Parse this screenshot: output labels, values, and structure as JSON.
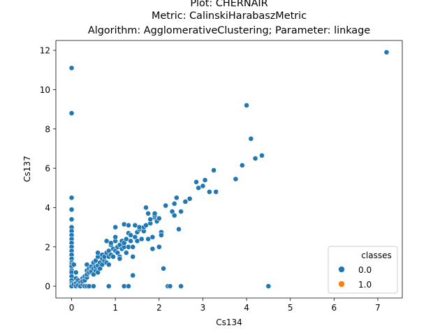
{
  "chart_data": {
    "type": "scatter",
    "title_lines": [
      "Plot: CHERNAIR",
      "Metric: CalinskiHarabaszMetric",
      "Algorithm: AgglomerativeClustering; Parameter: linkage"
    ],
    "xlabel": "Cs134",
    "ylabel": "Cs137",
    "xlim": [
      -0.36,
      7.56
    ],
    "ylim": [
      -0.6,
      12.5
    ],
    "xticks": [
      0,
      1,
      2,
      3,
      4,
      5,
      6,
      7
    ],
    "yticks": [
      0,
      2,
      4,
      6,
      8,
      10,
      12
    ],
    "grid": false,
    "legend": {
      "title": "classes",
      "placement": "lower-right",
      "entries": [
        {
          "label": "0.0",
          "color": "#1f77b4"
        },
        {
          "label": "1.0",
          "color": "#ff7f0e"
        }
      ]
    },
    "series": [
      {
        "class": "0.0",
        "color": "#1f77b4",
        "points": [
          [
            0,
            11.1
          ],
          [
            0,
            8.8
          ],
          [
            0,
            4.5
          ],
          [
            0,
            3.9
          ],
          [
            0,
            3.4
          ],
          [
            0,
            3.0
          ],
          [
            0,
            2.8
          ],
          [
            0,
            2.6
          ],
          [
            0,
            2.4
          ],
          [
            0,
            2.2
          ],
          [
            0,
            2.0
          ],
          [
            0,
            1.8
          ],
          [
            0,
            1.6
          ],
          [
            0,
            1.4
          ],
          [
            0,
            1.2
          ],
          [
            0,
            1.1
          ],
          [
            0,
            1.0
          ],
          [
            0,
            0.8
          ],
          [
            0,
            0.7
          ],
          [
            0,
            0.5
          ],
          [
            0,
            0.3
          ],
          [
            0,
            0.15
          ],
          [
            0,
            0.05
          ],
          [
            0,
            0.0
          ],
          [
            0.05,
            1.1
          ],
          [
            0.05,
            0.1
          ],
          [
            0.1,
            0.7
          ],
          [
            0.1,
            0.4
          ],
          [
            0.1,
            0.15
          ],
          [
            0.1,
            0.0
          ],
          [
            0.15,
            0.3
          ],
          [
            0.15,
            0.05
          ],
          [
            0.2,
            0.2
          ],
          [
            0.2,
            0.0
          ],
          [
            0.25,
            0.1
          ],
          [
            0.25,
            0.4
          ],
          [
            0.25,
            0.25
          ],
          [
            0.3,
            0.3
          ],
          [
            0.3,
            0.0
          ],
          [
            0.3,
            0.5
          ],
          [
            0.35,
            0.45
          ],
          [
            0.35,
            0.8
          ],
          [
            0.35,
            1.1
          ],
          [
            0.35,
            0.6
          ],
          [
            0.35,
            0.0
          ],
          [
            0.4,
            0.7
          ],
          [
            0.4,
            0.9
          ],
          [
            0.4,
            0.0
          ],
          [
            0.45,
            0.85
          ],
          [
            0.45,
            1.0
          ],
          [
            0.45,
            0.75
          ],
          [
            0.5,
            1.2
          ],
          [
            0.5,
            0.9
          ],
          [
            0.5,
            0.6
          ],
          [
            0.5,
            0.0
          ],
          [
            0.55,
            1.3
          ],
          [
            0.55,
            0.8
          ],
          [
            0.55,
            1.0
          ],
          [
            0.6,
            1.05
          ],
          [
            0.6,
            0.7
          ],
          [
            0.6,
            1.5
          ],
          [
            0.6,
            1.7
          ],
          [
            0.65,
            1.2
          ],
          [
            0.65,
            0.9
          ],
          [
            0.7,
            1.4
          ],
          [
            0.7,
            1.1
          ],
          [
            0.7,
            1.6
          ],
          [
            0.75,
            1.3
          ],
          [
            0.75,
            1.5
          ],
          [
            0.8,
            2.3
          ],
          [
            0.8,
            1.7
          ],
          [
            0.8,
            1.2
          ],
          [
            0.85,
            1.5
          ],
          [
            0.85,
            1.1
          ],
          [
            0.85,
            0.0
          ],
          [
            0.85,
            1.8
          ],
          [
            0.9,
            2.1
          ],
          [
            0.9,
            1.6
          ],
          [
            0.9,
            2.2
          ],
          [
            0.95,
            1.9
          ],
          [
            0.95,
            1.5
          ],
          [
            1.0,
            1.8
          ],
          [
            1.0,
            2.3
          ],
          [
            1.0,
            2.5
          ],
          [
            1.0,
            3.0
          ],
          [
            1.05,
            1.7
          ],
          [
            1.05,
            2.0
          ],
          [
            1.1,
            1.5
          ],
          [
            1.1,
            2.1
          ],
          [
            1.1,
            1.4
          ],
          [
            1.15,
            2.3
          ],
          [
            1.15,
            1.9
          ],
          [
            1.2,
            3.15
          ],
          [
            1.2,
            2.0
          ],
          [
            1.2,
            2.2
          ],
          [
            1.2,
            0.0
          ],
          [
            1.25,
            2.4
          ],
          [
            1.25,
            1.7
          ],
          [
            1.3,
            2.0
          ],
          [
            1.3,
            2.7
          ],
          [
            1.3,
            3.1
          ],
          [
            1.3,
            0.0
          ],
          [
            1.35,
            2.3
          ],
          [
            1.35,
            2.6
          ],
          [
            1.4,
            2.0
          ],
          [
            1.4,
            0.55
          ],
          [
            1.4,
            1.5
          ],
          [
            1.45,
            2.5
          ],
          [
            1.45,
            3.1
          ],
          [
            1.5,
            2.75
          ],
          [
            1.5,
            2.3
          ],
          [
            1.55,
            2.9
          ],
          [
            1.55,
            3.0
          ],
          [
            1.6,
            2.4
          ],
          [
            1.65,
            2.8
          ],
          [
            1.65,
            3.0
          ],
          [
            1.7,
            3.1
          ],
          [
            1.7,
            4.0
          ],
          [
            1.75,
            2.4
          ],
          [
            1.75,
            3.7
          ],
          [
            1.8,
            3.2
          ],
          [
            1.8,
            3.4
          ],
          [
            1.85,
            1.9
          ],
          [
            1.85,
            2.5
          ],
          [
            1.9,
            3.5
          ],
          [
            1.9,
            3.6
          ],
          [
            1.9,
            3.7
          ],
          [
            1.95,
            3.3
          ],
          [
            2.0,
            2.0
          ],
          [
            2.0,
            3.45
          ],
          [
            2.05,
            2.75
          ],
          [
            2.05,
            2.6
          ],
          [
            2.1,
            0.9
          ],
          [
            2.15,
            4.1
          ],
          [
            2.2,
            0.0
          ],
          [
            2.25,
            0.0
          ],
          [
            2.3,
            3.8
          ],
          [
            2.35,
            4.2
          ],
          [
            2.35,
            3.6
          ],
          [
            2.4,
            4.5
          ],
          [
            2.45,
            2.9
          ],
          [
            2.5,
            3.8
          ],
          [
            2.5,
            0.0
          ],
          [
            2.6,
            4.3
          ],
          [
            2.7,
            4.45
          ],
          [
            2.85,
            5.3
          ],
          [
            2.9,
            5.0
          ],
          [
            3.0,
            5.1
          ],
          [
            3.05,
            5.4
          ],
          [
            3.15,
            4.8
          ],
          [
            3.25,
            5.9
          ],
          [
            3.3,
            4.8
          ],
          [
            3.75,
            5.45
          ],
          [
            3.9,
            6.15
          ],
          [
            4.0,
            9.2
          ],
          [
            4.1,
            7.5
          ],
          [
            4.2,
            6.5
          ],
          [
            4.35,
            6.65
          ],
          [
            4.5,
            0.0
          ],
          [
            7.2,
            11.9
          ]
        ]
      },
      {
        "class": "1.0",
        "color": "#ff7f0e",
        "points": []
      }
    ]
  }
}
